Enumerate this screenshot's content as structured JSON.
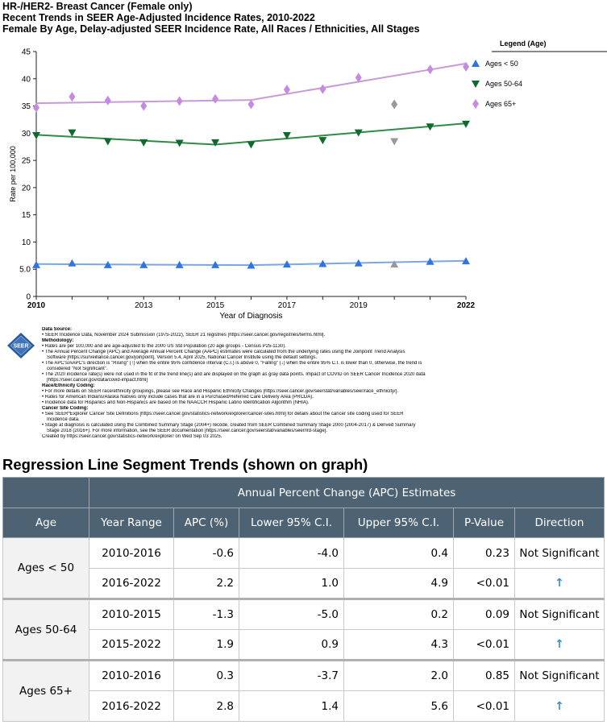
{
  "titles": {
    "line1": "HR-/HER2- Breast Cancer (Female only)",
    "line2": "Recent Trends in SEER Age-Adjusted Incidence Rates, 2010-2022",
    "line3": "Female By Age, Delay-adjusted SEER Incidence Rate, All Races / Ethnicities, All Stages"
  },
  "legend": {
    "title": "Legend (Age)",
    "items": [
      "Ages < 50",
      "Ages 50-64",
      "Ages 65+"
    ]
  },
  "colors": {
    "ages_under_50": "#2f74e0",
    "ages_50_64": "#0f6b2d",
    "ages_65_plus": "#c48be0",
    "trend_under_50": "#7aa6e8",
    "trend_50_64": "#2f8a45",
    "trend_65_plus": "#c99ad8",
    "excluded_point": "#999999",
    "table_header": "#4d6373",
    "up_arrow": "#3a8fd0"
  },
  "chart_data": {
    "type": "line",
    "xlabel": "Year of Diagnosis",
    "ylabel": "Rate per 100,000",
    "xlim": [
      2010,
      2022
    ],
    "ylim": [
      0,
      45
    ],
    "x_ticks": [
      "2010",
      "2013",
      "2015",
      "2017",
      "2019",
      "2022"
    ],
    "y_ticks": [
      "0",
      "5.0",
      "10",
      "15",
      "20",
      "25",
      "30",
      "35",
      "40",
      "45"
    ],
    "x": [
      2010,
      2011,
      2012,
      2013,
      2014,
      2015,
      2016,
      2017,
      2018,
      2019,
      2020,
      2021,
      2022
    ],
    "series": [
      {
        "name": "Ages < 50",
        "marker": "triangle-up",
        "values": [
          5.8,
          6.1,
          5.8,
          5.8,
          5.8,
          5.8,
          5.7,
          5.9,
          6.0,
          6.1,
          5.9,
          6.4,
          6.5
        ],
        "excluded_x": [
          2020
        ],
        "trend": [
          [
            2010,
            5.95
          ],
          [
            2016,
            5.75
          ],
          [
            2022,
            6.55
          ]
        ]
      },
      {
        "name": "Ages 50-64",
        "marker": "triangle-down",
        "values": [
          29.6,
          30.1,
          28.5,
          28.3,
          28.2,
          28.3,
          27.9,
          29.6,
          28.7,
          30.1,
          28.5,
          31.2,
          31.7
        ],
        "excluded_x": [
          2020
        ],
        "trend": [
          [
            2010,
            29.7
          ],
          [
            2015,
            27.9
          ],
          [
            2022,
            31.8
          ]
        ]
      },
      {
        "name": "Ages 65+",
        "marker": "diamond",
        "values": [
          34.7,
          36.7,
          36.0,
          35.0,
          35.9,
          36.3,
          35.3,
          38.0,
          38.1,
          40.2,
          35.3,
          41.7,
          42.2
        ],
        "excluded_x": [
          2020
        ],
        "trend": [
          [
            2010,
            35.5
          ],
          [
            2016,
            36.1
          ],
          [
            2022,
            42.8
          ]
        ]
      }
    ]
  },
  "footnote": {
    "lines": [
      {
        "text": "Data Source:",
        "bold": true
      },
      {
        "text": "• SEER Incidence Data, November 2024 Submission (1975-2022), SEER 21 registries [https://seer.cancer.gov/registries/terms.html].",
        "bold": false
      },
      {
        "text": "Methodology:",
        "bold": true
      },
      {
        "text": "• Rates are per 100,000 and are age-adjusted to the 2000 US Std Population (20 age groups - Census P25-1130).",
        "bold": false
      },
      {
        "text": "• The Annual Percent Change (APC) and Average Annual Percent Change (AAPC) estimates were calculated from the underlying rates using the Joinpoint Trend Analysis",
        "bold": false
      },
      {
        "text": "Software [https://surveillance.cancer.gov/joinpoint], Version 5.4, April 2025, National Cancer Institute using the default settings.",
        "bold": false
      },
      {
        "text": "• The APC's/AAPC's direction is \"Rising\" (↑) when the entire 95% confidence interval (C.I.) is above 0, \"Falling\" (↓) when the entire 95% C.I. is lower than 0, otherwise, the trend is",
        "bold": false
      },
      {
        "text": "considered \"Not Significant\".",
        "bold": false
      },
      {
        "text": "• The 2020 incidence rate(s) were not used in the fit of the trend line(s) and are displayed on the graph as gray data points. Impact of COVID on SEER Cancer Incidence 2020 data",
        "bold": false
      },
      {
        "text": "[https://seer.cancer.gov/data/covid-impact.html]",
        "bold": false
      },
      {
        "text": "Race/Ethnicity Coding:",
        "bold": true
      },
      {
        "text": "• For more details on SEER race/ethnicity groupings, please see Race and Hispanic Ethnicity Changes [https://seer.cancer.gov/seerstat/variables/seer/race_ethnicity/].",
        "bold": false
      },
      {
        "text": "• Rates for American Indians/Alaska Natives only include cases that are in a Purchased/Referred Care Delivery Area (PRCDA).",
        "bold": false
      },
      {
        "text": "• Incidence data for Hispanics and Non-Hispanics are based on the NAACCR Hispanic Latino Identification Algorithm (NHIA).",
        "bold": false
      },
      {
        "text": "Cancer Site Coding:",
        "bold": true
      },
      {
        "text": "• See SEER*Explorer Cancer Site Definitions [https://seer.cancer.gov/statistics-network/explorer/cancer-sites.html] for details about the cancer site coding used for SEER",
        "bold": false
      },
      {
        "text": "Incidence data.",
        "bold": false
      },
      {
        "text": "• Stage at diagnosis is calculated using the Combined Summary Stage (2004+) recode, created from SEER Combined Summary Stage 2000 (2004-2017) & Derived Summary",
        "bold": false
      },
      {
        "text": "Stage 2018 (2016+). For more information, see the SEER documentation [https://seer.cancer.gov/seerstat/variables/seer/lrd-stage].",
        "bold": false
      },
      {
        "text": "Created by https://seer.cancer.gov/statistics-network/explorer/ on Wed Sep 03 2025.",
        "bold": false
      }
    ]
  },
  "logo_text": "SEER",
  "section_title": "Regression Line Segment Trends (shown on graph)",
  "table": {
    "group_header": "Annual Percent Change (APC) Estimates",
    "columns": [
      "Age",
      "Year Range",
      "APC (%)",
      "Lower 95% C.I.",
      "Upper 95% C.I.",
      "P-Value",
      "Direction"
    ],
    "groups": [
      {
        "age": "Ages < 50",
        "rows": [
          {
            "range": "2010-2016",
            "apc": "-0.6",
            "lower": "-4.0",
            "upper": "0.4",
            "p": "0.23",
            "direction": "Not Significant"
          },
          {
            "range": "2016-2022",
            "apc": "2.2",
            "lower": "1.0",
            "upper": "4.9",
            "p": "<0.01",
            "direction": "↑"
          }
        ]
      },
      {
        "age": "Ages 50-64",
        "rows": [
          {
            "range": "2010-2015",
            "apc": "-1.3",
            "lower": "-5.0",
            "upper": "0.2",
            "p": "0.09",
            "direction": "Not Significant"
          },
          {
            "range": "2015-2022",
            "apc": "1.9",
            "lower": "0.9",
            "upper": "4.3",
            "p": "<0.01",
            "direction": "↑"
          }
        ]
      },
      {
        "age": "Ages 65+",
        "rows": [
          {
            "range": "2010-2016",
            "apc": "0.3",
            "lower": "-3.7",
            "upper": "2.0",
            "p": "0.85",
            "direction": "Not Significant"
          },
          {
            "range": "2016-2022",
            "apc": "2.8",
            "lower": "1.4",
            "upper": "5.6",
            "p": "<0.01",
            "direction": "↑"
          }
        ]
      }
    ]
  }
}
